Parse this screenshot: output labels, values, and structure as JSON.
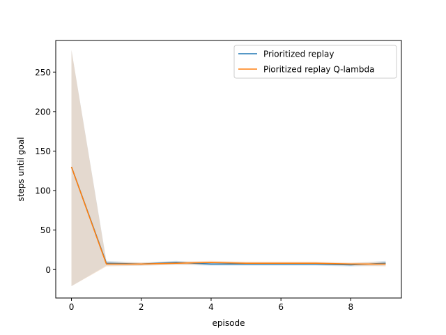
{
  "chart_data": {
    "type": "line",
    "title": "",
    "xlabel": "episode",
    "ylabel": "steps until goal",
    "xlim": [
      -0.45,
      9.45
    ],
    "ylim": [
      -36,
      290
    ],
    "xticks": [
      0,
      2,
      4,
      6,
      8
    ],
    "yticks": [
      0,
      50,
      100,
      150,
      200,
      250
    ],
    "xtick_labels": [
      "0",
      "2",
      "4",
      "6",
      "8"
    ],
    "ytick_labels": [
      "0",
      "50",
      "100",
      "150",
      "200",
      "250"
    ],
    "grid": false,
    "legend_position": "upper right",
    "x": [
      0,
      1,
      2,
      3,
      4,
      5,
      6,
      7,
      8,
      9
    ],
    "series": [
      {
        "name": "Prioritized replay",
        "color": "#1f77b4",
        "values": [
          130,
          8,
          7,
          9,
          7,
          7,
          7,
          7,
          6,
          8
        ],
        "band_lower": [
          -21,
          5,
          5,
          6,
          5,
          5,
          5,
          5,
          4,
          5
        ],
        "band_upper": [
          278,
          11,
          9,
          11,
          9,
          9,
          9,
          9,
          8,
          11
        ],
        "band_color": "#a6c8e4"
      },
      {
        "name": "Pioritized replay Q-lambda",
        "color": "#ff7f0e",
        "values": [
          130,
          7,
          7,
          8,
          9,
          8,
          8,
          8,
          7,
          7
        ],
        "band_lower": [
          -21,
          4,
          5,
          6,
          6,
          6,
          6,
          6,
          5,
          4
        ],
        "band_upper": [
          278,
          10,
          9,
          10,
          11,
          10,
          10,
          10,
          9,
          10
        ],
        "band_color": "#f5c9a3"
      }
    ]
  }
}
